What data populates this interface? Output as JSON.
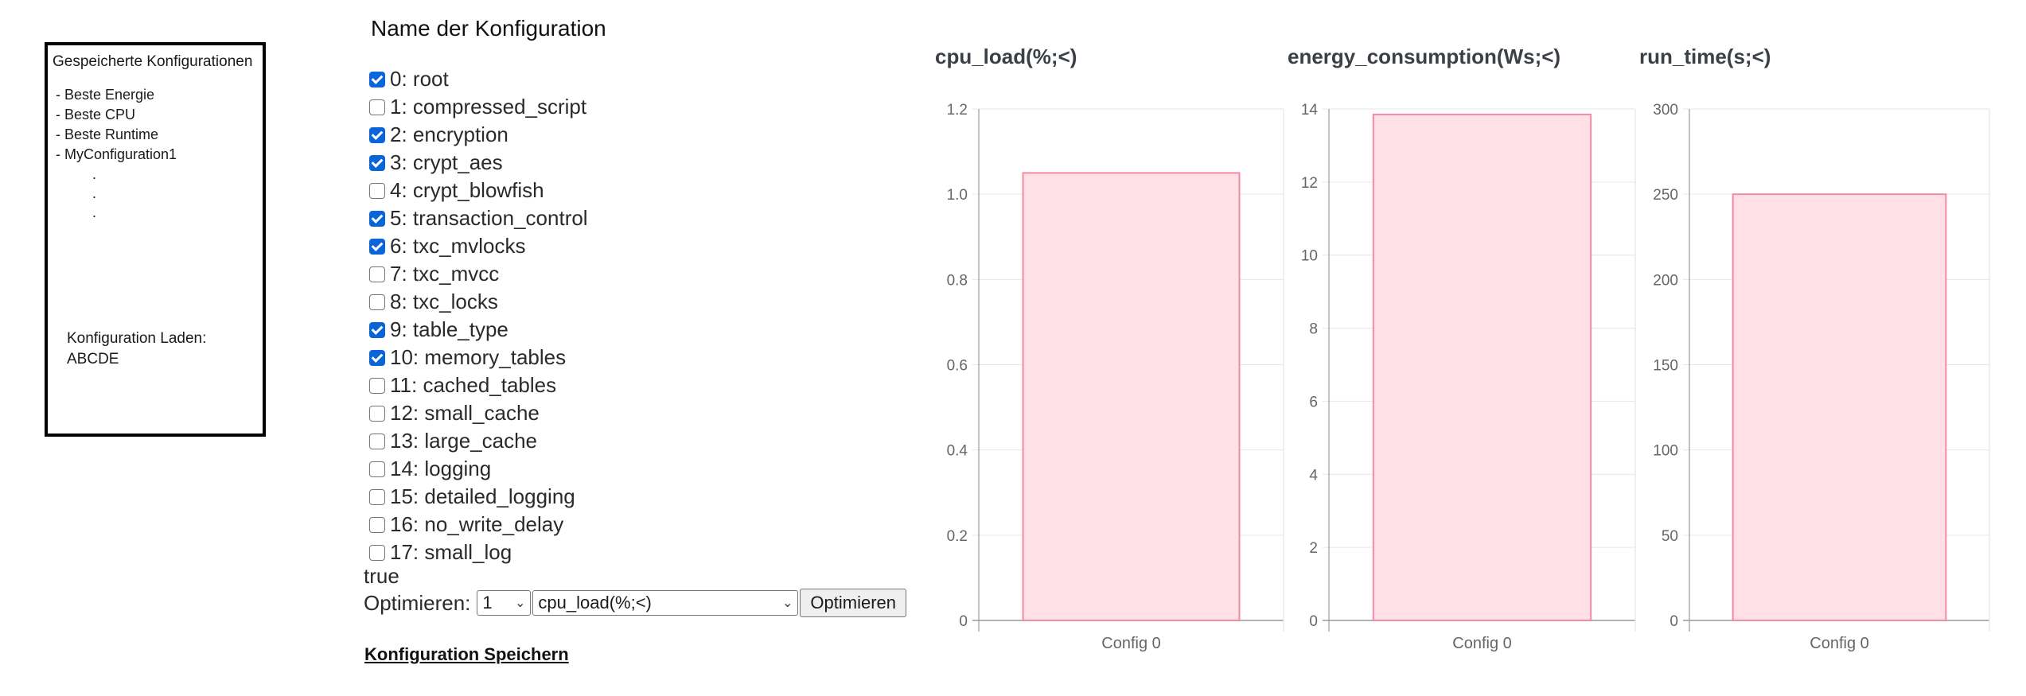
{
  "saved": {
    "title": "Gespeicherte Konfigurationen",
    "items": [
      "- Beste Energie",
      "- Beste CPU",
      "- Beste Runtime",
      "- MyConfiguration1"
    ],
    "dots": [
      ".",
      ".",
      "."
    ],
    "load_label": "Konfiguration Laden:",
    "load_value": "ABCDE"
  },
  "config_name": "Name der Konfiguration",
  "features": [
    {
      "label": "0: root",
      "checked": true
    },
    {
      "label": "1: compressed_script",
      "checked": false
    },
    {
      "label": "2: encryption",
      "checked": true
    },
    {
      "label": "3: crypt_aes",
      "checked": true
    },
    {
      "label": "4: crypt_blowfish",
      "checked": false
    },
    {
      "label": "5: transaction_control",
      "checked": true
    },
    {
      "label": "6: txc_mvlocks",
      "checked": true
    },
    {
      "label": "7: txc_mvcc",
      "checked": false
    },
    {
      "label": "8: txc_locks",
      "checked": false
    },
    {
      "label": "9: table_type",
      "checked": true
    },
    {
      "label": "10: memory_tables",
      "checked": true
    },
    {
      "label": "11: cached_tables",
      "checked": false
    },
    {
      "label": "12: small_cache",
      "checked": false
    },
    {
      "label": "13: large_cache",
      "checked": false
    },
    {
      "label": "14: logging",
      "checked": false
    },
    {
      "label": "15: detailed_logging",
      "checked": false
    },
    {
      "label": "16: no_write_delay",
      "checked": false
    },
    {
      "label": "17: small_log",
      "checked": false
    }
  ],
  "status_text": "true",
  "optimize": {
    "label": "Optimieren:",
    "count_value": "1",
    "metric_value": "cpu_load(%;<)",
    "button_label": "Optimieren"
  },
  "save_link": "Konfiguration Speichern",
  "colors": {
    "bar_fill": "#ffe0e6",
    "bar_stroke": "#f38aa3",
    "checkbox": "#0a66d8"
  },
  "chart_data": [
    {
      "type": "bar",
      "title": "cpu_load(%;<)",
      "categories": [
        "Config 0"
      ],
      "values": [
        1.05
      ],
      "ylim": [
        0,
        1.2
      ],
      "yticks": [
        "0",
        "0.2",
        "0.4",
        "0.6",
        "0.8",
        "1.0",
        "1.2"
      ],
      "grid": true
    },
    {
      "type": "bar",
      "title": "energy_consumption(Ws;<)",
      "categories": [
        "Config 0"
      ],
      "values": [
        13.85
      ],
      "ylim": [
        0,
        14
      ],
      "yticks": [
        "0",
        "2",
        "4",
        "6",
        "8",
        "10",
        "12",
        "14"
      ],
      "grid": true
    },
    {
      "type": "bar",
      "title": "run_time(s;<)",
      "categories": [
        "Config 0"
      ],
      "values": [
        250
      ],
      "ylim": [
        0,
        300
      ],
      "yticks": [
        "0",
        "50",
        "100",
        "150",
        "200",
        "250",
        "300"
      ],
      "grid": true
    }
  ]
}
